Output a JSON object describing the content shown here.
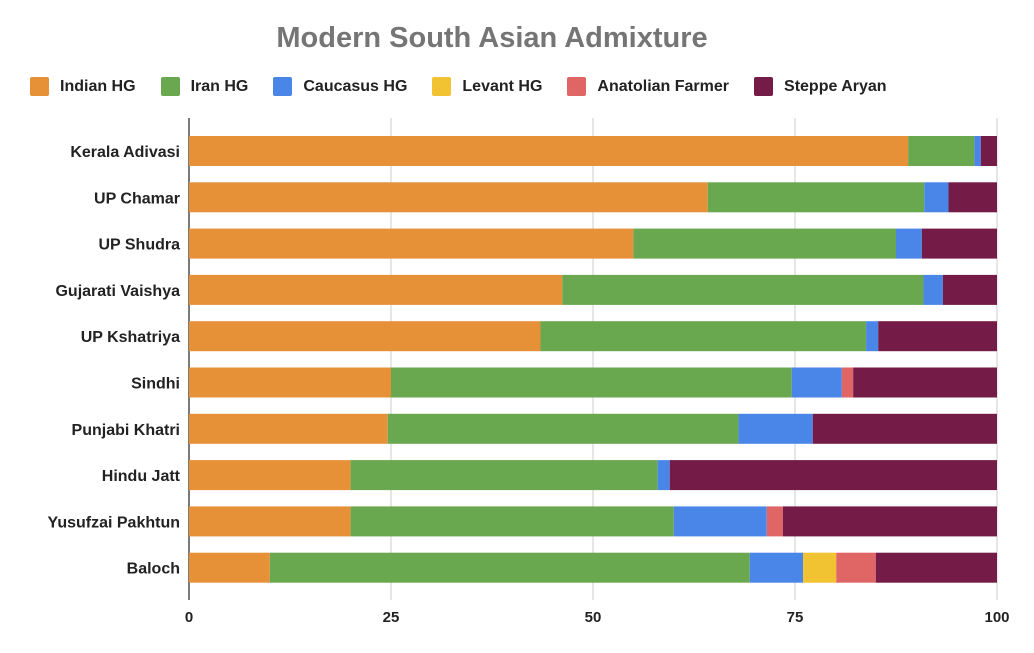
{
  "chart_data": {
    "type": "bar",
    "orientation": "horizontal",
    "stacked": true,
    "title": "Modern South Asian Admixture",
    "xlabel": "",
    "ylabel": "",
    "xlim": [
      0,
      100
    ],
    "xticks": [
      "0",
      "25",
      "50",
      "75",
      "100"
    ],
    "grid": true,
    "legend_position": "top",
    "categories": [
      "Kerala Adivasi",
      "UP Chamar",
      "UP Shudra",
      "Gujarati Vaishya",
      "UP Kshatriya",
      "Sindhi",
      "Punjabi Khatri",
      "Hindu Jatt",
      "Yusufzai Pakhtun",
      "Baloch"
    ],
    "series": [
      {
        "name": "Indian HG",
        "color": "#e69138",
        "values": [
          89,
          64.2,
          55,
          46.2,
          43.5,
          25,
          24.6,
          20,
          20,
          10
        ]
      },
      {
        "name": "Iran HG",
        "color": "#6aa84f",
        "values": [
          8.2,
          26.8,
          32.5,
          44.7,
          40.3,
          49.6,
          43.4,
          38,
          40,
          59.4
        ]
      },
      {
        "name": "Caucasus HG",
        "color": "#4a86e8",
        "values": [
          0.8,
          3,
          3.2,
          2.4,
          1.5,
          6.2,
          9.2,
          1.5,
          11.5,
          6.6
        ]
      },
      {
        "name": "Levant HG",
        "color": "#f1c232",
        "values": [
          0,
          0,
          0,
          0,
          0,
          0,
          0,
          0,
          0,
          4.1
        ]
      },
      {
        "name": "Anatolian Farmer",
        "color": "#e06666",
        "values": [
          0,
          0,
          0,
          0,
          0,
          1.4,
          0,
          0,
          2,
          4.9
        ]
      },
      {
        "name": "Steppe Aryan",
        "color": "#741b47",
        "values": [
          2,
          6,
          9.3,
          6.7,
          14.7,
          17.8,
          22.8,
          40.5,
          26.5,
          15
        ]
      }
    ]
  }
}
